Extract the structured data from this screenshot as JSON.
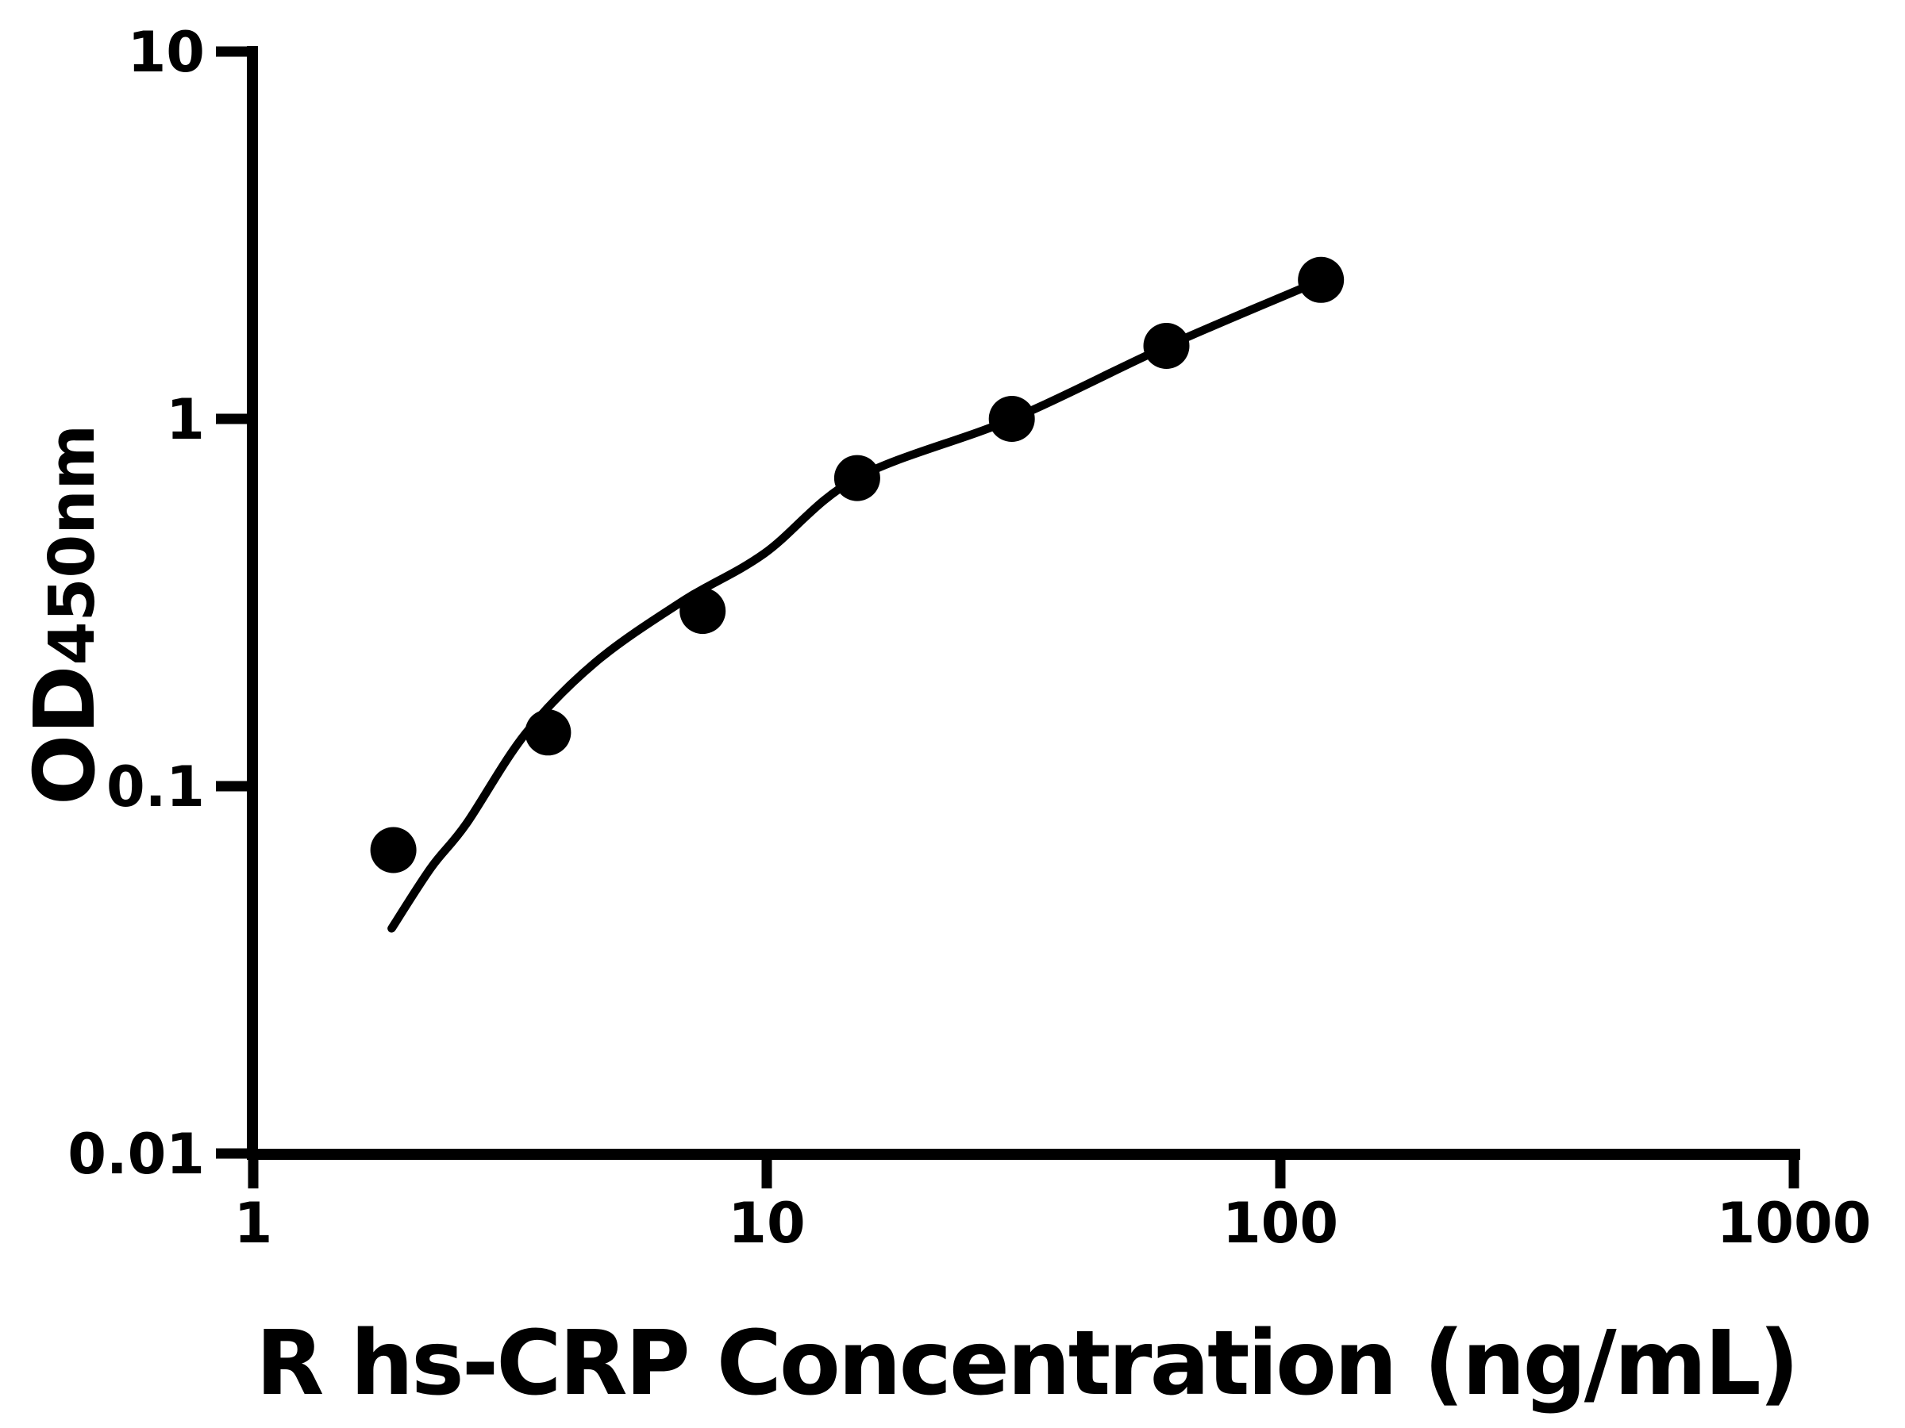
{
  "figure": {
    "background_color": "#ffffff",
    "ink_color": "#000000"
  },
  "chart_data": {
    "type": "scatter",
    "title": "",
    "xlabel": "R hs-CRP Concentration (ng/mL)",
    "ylabel_main": "OD",
    "ylabel_sub": "450nm",
    "x_scale": "log",
    "y_scale": "log",
    "xlim": [
      1,
      1000
    ],
    "ylim": [
      0.01,
      10
    ],
    "grid": false,
    "legend_position": "none",
    "x_tick_values": [
      1,
      10,
      100,
      1000
    ],
    "x_tick_labels": [
      "1",
      "10",
      "100",
      "1000"
    ],
    "y_tick_values": [
      10,
      1,
      0.1,
      0.01
    ],
    "y_tick_labels": [
      "10",
      "1",
      "0.1",
      "0.01"
    ],
    "series": [
      {
        "name": "standard-data-points",
        "marker": "filled-circle",
        "marker_color": "#000000",
        "marker_radius_px": 29,
        "x": [
          1.875,
          3.75,
          7.5,
          15,
          30,
          60,
          120
        ],
        "y": [
          0.067,
          0.14,
          0.3,
          0.69,
          1.0,
          1.58,
          2.39
        ]
      }
    ],
    "fit_curve": {
      "name": "four-parameter-fit-line",
      "stroke_color": "#000000",
      "stroke_width_px": 10.5,
      "x": [
        1.86,
        2.22,
        2.6,
        3.39,
        4.63,
        6.86,
        9.89,
        14.97,
        30.1,
        60.3,
        120.6
      ],
      "y": [
        0.041,
        0.06,
        0.079,
        0.139,
        0.217,
        0.319,
        0.43,
        0.69,
        1.0,
        1.58,
        2.39
      ]
    }
  }
}
